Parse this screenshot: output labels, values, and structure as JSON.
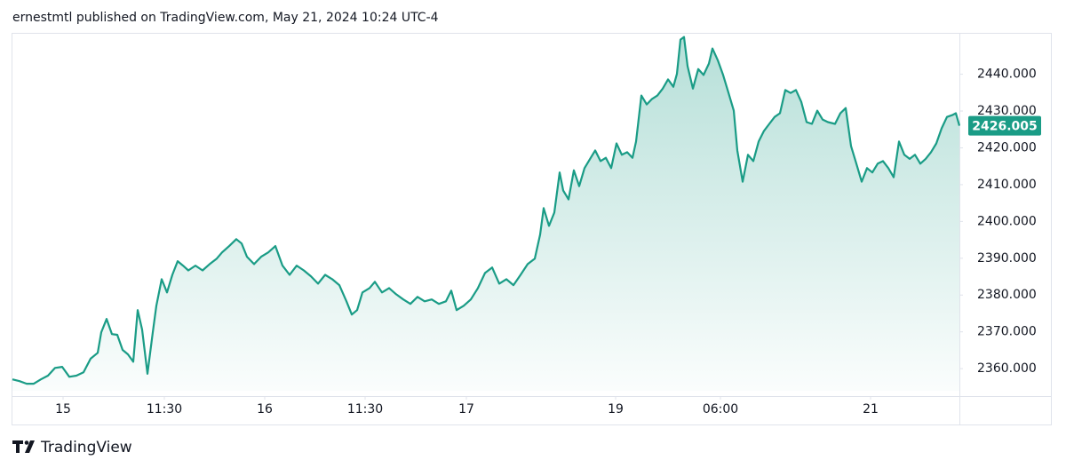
{
  "header": "ernestmtl published on TradingView.com, May 21, 2024 10:24 UTC-4",
  "footer": "TradingView",
  "chart_data": {
    "type": "area",
    "color": "#1a9c86",
    "x": [
      0,
      8,
      16,
      24,
      32,
      40,
      48,
      56,
      64,
      72,
      80,
      88,
      96,
      100,
      106,
      112,
      118,
      124,
      130,
      136,
      141,
      146,
      152,
      158,
      162,
      168,
      174,
      180,
      186,
      192,
      198,
      206,
      214,
      222,
      230,
      236,
      244,
      252,
      258,
      264,
      272,
      280,
      288,
      296,
      304,
      312,
      320,
      328,
      336,
      344,
      352,
      360,
      368,
      376,
      382,
      388,
      394,
      402,
      408,
      416,
      424,
      432,
      440,
      448,
      456,
      464,
      472,
      480,
      488,
      494,
      500,
      508,
      516,
      524,
      532,
      540,
      548,
      556,
      564,
      572,
      580,
      588,
      594,
      598,
      604,
      610,
      616,
      620,
      626,
      632,
      638,
      644,
      650,
      656,
      662,
      668,
      674,
      680,
      686,
      692,
      698,
      702,
      708,
      714,
      720,
      726,
      732,
      738,
      744,
      748,
      752,
      756,
      760,
      766,
      772,
      778,
      784,
      788,
      794,
      800,
      806,
      812,
      816,
      822,
      828,
      834,
      840,
      846,
      852,
      858,
      864,
      870,
      876,
      882,
      888,
      894,
      900,
      906,
      912,
      918,
      926,
      932,
      938,
      944,
      950,
      956,
      962,
      968,
      974,
      980,
      986,
      992,
      998,
      1004,
      1010,
      1016,
      1022,
      1028,
      1034,
      1040,
      1046,
      1052,
      1058,
      1062,
      1066
    ],
    "values": [
      2357.1,
      2356.6,
      2355.9,
      2355.9,
      2357.1,
      2358.1,
      2360.2,
      2360.5,
      2357.8,
      2358.1,
      2359.0,
      2362.7,
      2364.3,
      2369.9,
      2373.5,
      2369.4,
      2369.2,
      2365.1,
      2363.9,
      2361.9,
      2375.9,
      2370.6,
      2358.6,
      2369.9,
      2377.1,
      2384.3,
      2380.7,
      2385.5,
      2389.2,
      2388.0,
      2386.7,
      2388.0,
      2386.7,
      2388.4,
      2389.9,
      2391.6,
      2393.3,
      2395.2,
      2394.0,
      2390.4,
      2388.4,
      2390.4,
      2391.6,
      2393.3,
      2388.0,
      2385.5,
      2388.0,
      2386.7,
      2385.1,
      2383.1,
      2385.5,
      2384.3,
      2382.7,
      2378.3,
      2374.7,
      2375.9,
      2380.7,
      2381.9,
      2383.6,
      2380.7,
      2381.9,
      2380.2,
      2378.8,
      2377.6,
      2379.5,
      2378.3,
      2378.8,
      2377.6,
      2378.3,
      2381.2,
      2375.9,
      2377.1,
      2378.8,
      2381.9,
      2386.0,
      2387.5,
      2383.1,
      2384.3,
      2382.7,
      2385.5,
      2388.4,
      2389.9,
      2396.4,
      2403.6,
      2398.8,
      2402.4,
      2413.3,
      2408.4,
      2406.0,
      2413.9,
      2409.6,
      2414.5,
      2416.9,
      2419.3,
      2416.4,
      2417.3,
      2414.5,
      2421.2,
      2418.1,
      2418.8,
      2417.3,
      2421.7,
      2434.2,
      2431.8,
      2433.3,
      2434.2,
      2436.1,
      2438.6,
      2436.6,
      2440.1,
      2449.4,
      2450.1,
      2442.2,
      2436.1,
      2441.4,
      2439.8,
      2442.9,
      2447.0,
      2443.8,
      2439.8,
      2435.0,
      2430.1,
      2419.3,
      2410.8,
      2418.1,
      2416.4,
      2421.7,
      2424.6,
      2426.5,
      2428.4,
      2429.4,
      2435.7,
      2434.9,
      2435.7,
      2432.5,
      2427.0,
      2426.5,
      2430.1,
      2427.7,
      2427.0,
      2426.5,
      2429.4,
      2430.8,
      2420.5,
      2415.7,
      2410.8,
      2414.5,
      2413.3,
      2415.7,
      2416.4,
      2414.5,
      2412.0,
      2421.7,
      2418.1,
      2417.0,
      2418.1,
      2415.7,
      2417.0,
      2418.8,
      2421.2,
      2425.3,
      2428.4,
      2428.9,
      2429.4,
      2426.005
    ],
    "xlim": [
      0,
      1066
    ],
    "xticks": [
      {
        "value": 57,
        "label": "15"
      },
      {
        "value": 171,
        "label": "11:30"
      },
      {
        "value": 284,
        "label": "16"
      },
      {
        "value": 397,
        "label": "11:30"
      },
      {
        "value": 511,
        "label": "17"
      },
      {
        "value": 679,
        "label": "19"
      },
      {
        "value": 797,
        "label": "06:00"
      },
      {
        "value": 966,
        "label": "21"
      }
    ],
    "ylim": [
      2354,
      2451
    ],
    "yticks": [
      {
        "value": 2360,
        "label": "2360.000"
      },
      {
        "value": 2370,
        "label": "2370.000"
      },
      {
        "value": 2380,
        "label": "2380.000"
      },
      {
        "value": 2390,
        "label": "2390.000"
      },
      {
        "value": 2400,
        "label": "2400.000"
      },
      {
        "value": 2410,
        "label": "2410.000"
      },
      {
        "value": 2420,
        "label": "2420.000"
      },
      {
        "value": 2430,
        "label": "2430.000"
      },
      {
        "value": 2440,
        "label": "2440.000"
      }
    ],
    "grid": false
  }
}
